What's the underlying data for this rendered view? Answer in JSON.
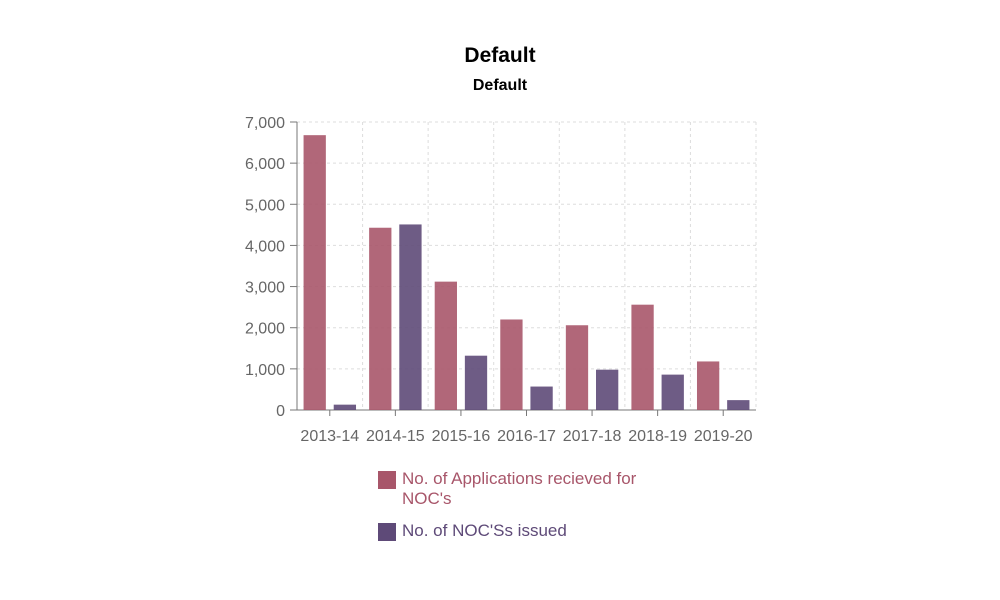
{
  "title": "Default",
  "subtitle": "Default",
  "colors": {
    "applications": "#a8566a",
    "issued": "#5e4a78",
    "axis": "#777777",
    "grid": "#dddddd"
  },
  "chart_data": {
    "type": "bar",
    "title": "Default",
    "subtitle": "Default",
    "xlabel": "",
    "ylabel": "",
    "categories": [
      "2013-14",
      "2014-15",
      "2015-16",
      "2016-17",
      "2017-18",
      "2018-19",
      "2019-20"
    ],
    "ylim": [
      0,
      7000
    ],
    "yticks": [
      0,
      1000,
      2000,
      3000,
      4000,
      5000,
      6000,
      7000
    ],
    "ytick_labels": [
      "0",
      "1,000",
      "2,000",
      "3,000",
      "4,000",
      "5,000",
      "6,000",
      "7,000"
    ],
    "grid": true,
    "legend_position": "bottom",
    "series": [
      {
        "name": "No. of Applications recieved for NOC's",
        "color": "#a8566a",
        "values": [
          6680,
          4430,
          3120,
          2200,
          2060,
          2560,
          1180
        ]
      },
      {
        "name": "No. of NOC'Ss issued",
        "color": "#5e4a78",
        "values": [
          130,
          4510,
          1320,
          570,
          980,
          860,
          240
        ]
      }
    ]
  }
}
